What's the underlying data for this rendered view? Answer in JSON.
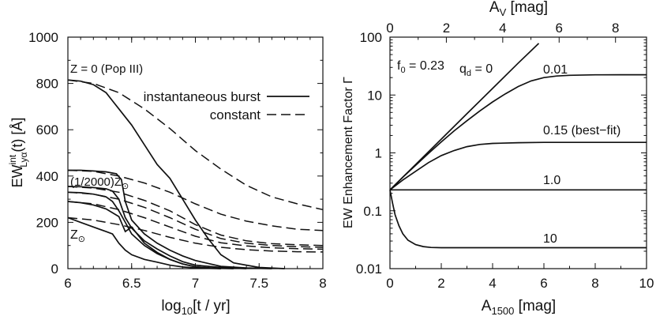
{
  "chart_data": [
    {
      "type": "line",
      "xlabel_base": "log",
      "xlabel_sub": "10",
      "xlabel_rest": "[t / yr]",
      "ylabel_main": "EW",
      "ylabel_sup": "int",
      "ylabel_sub": "Lyα",
      "ylabel_rest": "(t) [Å]",
      "xlim": [
        6,
        8
      ],
      "ylim": [
        0,
        1000
      ],
      "xticks": [
        6,
        6.5,
        7,
        7.5,
        8
      ],
      "xtick_labels": [
        "6",
        "6.5",
        "7",
        "7.5",
        "8"
      ],
      "yticks": [
        0,
        200,
        400,
        600,
        800,
        1000
      ],
      "ytick_labels": [
        "0",
        "200",
        "400",
        "600",
        "800",
        "1000"
      ],
      "legend": {
        "position": "top-right",
        "entries": [
          {
            "label": "instantaneous burst",
            "style": "solid"
          },
          {
            "label": "constant",
            "style": "dashed"
          }
        ]
      },
      "annotations": {
        "popiii": "Z = 0 (Pop III)",
        "z2000_prefix": "(1/2000)Z",
        "zsun_prefix": "Z"
      },
      "series": [
        {
          "name": "burst Z=0",
          "style": "solid",
          "x": [
            6,
            6.1,
            6.2,
            6.3,
            6.35,
            6.4,
            6.5,
            6.6,
            6.7,
            6.8,
            6.9,
            7.0,
            7.1,
            7.2,
            7.3,
            7.5,
            7.7
          ],
          "y": [
            815,
            810,
            795,
            760,
            725,
            690,
            620,
            535,
            450,
            390,
            300,
            210,
            130,
            60,
            25,
            5,
            0
          ]
        },
        {
          "name": "burst 1/2000 Zsun",
          "style": "solid",
          "x": [
            6,
            6.1,
            6.2,
            6.3,
            6.38,
            6.42,
            6.45,
            6.5,
            6.6,
            6.7,
            6.8,
            6.9,
            7.0,
            7.2,
            7.4,
            7.6
          ],
          "y": [
            425,
            425,
            422,
            418,
            410,
            385,
            290,
            210,
            150,
            110,
            80,
            55,
            35,
            10,
            3,
            0
          ]
        },
        {
          "name": "burst Z 3",
          "style": "solid",
          "x": [
            6,
            6.1,
            6.2,
            6.3,
            6.35,
            6.4,
            6.45,
            6.5,
            6.6,
            6.7,
            6.8,
            6.9,
            7.0,
            7.2,
            7.4
          ],
          "y": [
            355,
            354,
            350,
            345,
            335,
            300,
            220,
            175,
            120,
            85,
            55,
            30,
            15,
            5,
            0
          ]
        },
        {
          "name": "burst Z 4",
          "style": "solid",
          "x": [
            6,
            6.1,
            6.2,
            6.3,
            6.35,
            6.4,
            6.45,
            6.5,
            6.6,
            6.7,
            6.8,
            6.9,
            7.0,
            7.2
          ],
          "y": [
            330,
            328,
            322,
            310,
            290,
            250,
            200,
            150,
            100,
            65,
            40,
            20,
            8,
            0
          ]
        },
        {
          "name": "burst Z 5",
          "style": "solid",
          "x": [
            6,
            6.1,
            6.2,
            6.3,
            6.4,
            6.45,
            6.5,
            6.6,
            6.7,
            6.8,
            6.9,
            7.0,
            7.1,
            7.3
          ],
          "y": [
            290,
            285,
            275,
            258,
            225,
            160,
            180,
            110,
            70,
            40,
            20,
            8,
            3,
            0
          ]
        },
        {
          "name": "burst Zsun",
          "style": "solid",
          "x": [
            6,
            6.1,
            6.2,
            6.3,
            6.35,
            6.4,
            6.45,
            6.5,
            6.6,
            6.7,
            6.8,
            6.9,
            7.0,
            7.2
          ],
          "y": [
            220,
            200,
            180,
            160,
            150,
            110,
            80,
            60,
            40,
            28,
            15,
            7,
            3,
            0
          ]
        },
        {
          "name": "constant Z=0",
          "style": "dashed",
          "x": [
            6,
            6.2,
            6.4,
            6.6,
            6.8,
            7.0,
            7.2,
            7.4,
            7.6,
            7.8,
            8.0
          ],
          "y": [
            815,
            800,
            760,
            690,
            605,
            510,
            430,
            360,
            310,
            280,
            255
          ]
        },
        {
          "name": "constant 1/2000 Zsun",
          "style": "dashed",
          "x": [
            6,
            6.2,
            6.4,
            6.6,
            6.8,
            7.0,
            7.2,
            7.4,
            7.6,
            7.8,
            8.0
          ],
          "y": [
            425,
            420,
            400,
            370,
            330,
            280,
            235,
            205,
            185,
            170,
            165
          ]
        },
        {
          "name": "constant Z 3",
          "style": "dashed",
          "x": [
            6,
            6.2,
            6.4,
            6.6,
            6.8,
            7.0,
            7.2,
            7.4,
            7.6,
            7.8,
            8.0
          ],
          "y": [
            355,
            348,
            330,
            295,
            250,
            190,
            145,
            120,
            108,
            103,
            100
          ]
        },
        {
          "name": "constant Z 4",
          "style": "dashed",
          "x": [
            6,
            6.2,
            6.4,
            6.6,
            6.8,
            7.0,
            7.2,
            7.4,
            7.6,
            7.8,
            8.0
          ],
          "y": [
            330,
            322,
            300,
            265,
            220,
            170,
            130,
            110,
            100,
            95,
            92
          ]
        },
        {
          "name": "constant Z 5",
          "style": "dashed",
          "x": [
            6,
            6.2,
            6.4,
            6.6,
            6.8,
            7.0,
            7.2,
            7.4,
            7.6,
            7.8,
            8.0
          ],
          "y": [
            290,
            280,
            255,
            220,
            180,
            140,
            112,
            98,
            90,
            86,
            84
          ]
        },
        {
          "name": "constant Zsun",
          "style": "dashed",
          "x": [
            6,
            6.2,
            6.4,
            6.6,
            6.8,
            7.0,
            7.2,
            7.4,
            7.6,
            7.8,
            8.0
          ],
          "y": [
            220,
            210,
            190,
            165,
            135,
            110,
            92,
            82,
            76,
            73,
            72
          ]
        }
      ]
    },
    {
      "type": "line",
      "xlabel_base": "A",
      "xlabel_sub": "1500",
      "xlabel_rest": " [mag]",
      "top_xlabel_base": "A",
      "top_xlabel_sub": "V",
      "top_xlabel_rest": " [mag]",
      "ylabel": "EW Enhancement Factor  Γ",
      "xlim": [
        0,
        10
      ],
      "top_xlim": [
        0,
        9.1
      ],
      "ylim": [
        0.01,
        100
      ],
      "yscale": "log",
      "xticks": [
        0,
        2,
        4,
        6,
        8,
        10
      ],
      "xtick_labels": [
        "0",
        "2",
        "4",
        "6",
        "8",
        "10"
      ],
      "top_xticks": [
        0,
        2,
        4,
        6,
        8
      ],
      "top_xtick_labels": [
        "0",
        "2",
        "4",
        "6",
        "8"
      ],
      "yticks": [
        0.01,
        0.1,
        1,
        10,
        100
      ],
      "ytick_labels": [
        "0.01",
        "0.1",
        "1",
        "10",
        "100"
      ],
      "annotations": {
        "f0_prefix": "f",
        "f0_sub": "0",
        "f0_value": " = 0.23",
        "qd_prefix": "q",
        "qd_sub": "d",
        "qd_value": " = 0"
      },
      "series": [
        {
          "name": "q_d = 0",
          "label": "",
          "x": [
            0,
            1,
            2,
            3,
            4,
            5,
            5.8
          ],
          "y": [
            0.23,
            0.63,
            1.73,
            4.75,
            13.0,
            35.7,
            78.0
          ]
        },
        {
          "name": "q_d = 0.01",
          "label": "0.01",
          "x": [
            0,
            0.5,
            1,
            1.5,
            2,
            2.5,
            3,
            3.5,
            4,
            4.5,
            5,
            5.5,
            6,
            6.5,
            7,
            8,
            9,
            10
          ],
          "y": [
            0.23,
            0.38,
            0.61,
            0.98,
            1.55,
            2.4,
            3.6,
            5.3,
            7.6,
            10.5,
            14.0,
            17.5,
            20.0,
            21.3,
            21.9,
            22.3,
            22.4,
            22.4
          ]
        },
        {
          "name": "q_d = 0.15 (best-fit)",
          "label": "0.15 (best−fit)",
          "x": [
            0,
            0.5,
            1,
            1.5,
            2,
            2.5,
            3,
            3.5,
            4,
            5,
            6,
            7,
            8,
            9,
            10
          ],
          "y": [
            0.23,
            0.34,
            0.48,
            0.68,
            0.9,
            1.1,
            1.28,
            1.4,
            1.46,
            1.5,
            1.52,
            1.52,
            1.52,
            1.52,
            1.52
          ]
        },
        {
          "name": "q_d = 1.0",
          "label": "1.0",
          "x": [
            0,
            10
          ],
          "y": [
            0.23,
            0.23
          ]
        },
        {
          "name": "q_d = 10",
          "label": "10",
          "x": [
            0,
            0.1,
            0.2,
            0.35,
            0.5,
            0.7,
            1,
            1.3,
            1.6,
            2,
            3,
            5,
            10
          ],
          "y": [
            0.23,
            0.135,
            0.085,
            0.055,
            0.04,
            0.031,
            0.026,
            0.024,
            0.0232,
            0.023,
            0.023,
            0.023,
            0.023
          ]
        }
      ]
    }
  ]
}
